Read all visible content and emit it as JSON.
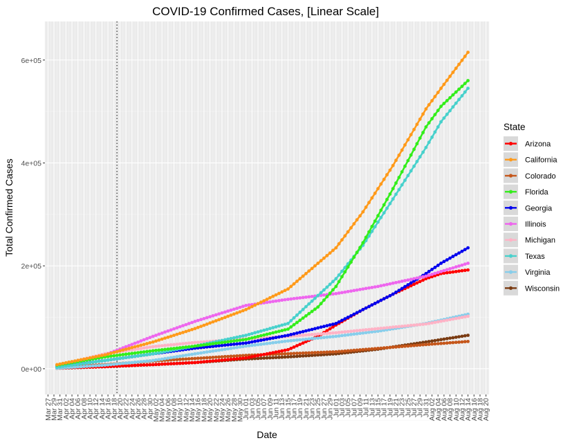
{
  "chart_data": {
    "type": "scatter",
    "title": "COVID-19 Confirmed Cases, [Linear Scale]",
    "xlabel": "Date",
    "ylabel": "Total Confirmed Cases",
    "xlim": [
      "2020-03-26",
      "2020-08-21"
    ],
    "ylim": [
      -50000,
      675000
    ],
    "x_ticks": [
      "Mar 27",
      "Mar 29",
      "Mar 31",
      "Apr 02",
      "Apr 04",
      "Apr 06",
      "Apr 08",
      "Apr 10",
      "Apr 12",
      "Apr 14",
      "Apr 16",
      "Apr 18",
      "Apr 20",
      "Apr 22",
      "Apr 24",
      "Apr 26",
      "Apr 28",
      "Apr 30",
      "May 02",
      "May 04",
      "May 06",
      "May 08",
      "May 10",
      "May 12",
      "May 14",
      "May 16",
      "May 18",
      "May 20",
      "May 22",
      "May 24",
      "May 26",
      "May 28",
      "May 30",
      "Jun 01",
      "Jun 03",
      "Jun 05",
      "Jun 07",
      "Jun 09",
      "Jun 11",
      "Jun 13",
      "Jun 15",
      "Jun 17",
      "Jun 19",
      "Jun 21",
      "Jun 23",
      "Jun 25",
      "Jun 27",
      "Jun 29",
      "Jul 01",
      "Jul 03",
      "Jul 05",
      "Jul 07",
      "Jul 09",
      "Jul 11",
      "Jul 13",
      "Jul 15",
      "Jul 17",
      "Jul 19",
      "Jul 21",
      "Jul 23",
      "Jul 25",
      "Jul 27",
      "Jul 29",
      "Jul 31",
      "Aug 02",
      "Aug 04",
      "Aug 06",
      "Aug 08",
      "Aug 10",
      "Aug 12",
      "Aug 14",
      "Aug 16",
      "Aug 18",
      "Aug 20"
    ],
    "y_ticks": [
      {
        "value": 0,
        "label": "0e+00"
      },
      {
        "value": 200000,
        "label": "2e+05"
      },
      {
        "value": 400000,
        "label": "4e+05"
      },
      {
        "value": 600000,
        "label": "6e+05"
      }
    ],
    "vline_date": "2020-04-19",
    "grid": true,
    "legend": {
      "title": "State",
      "position": "right",
      "items": [
        {
          "name": "Arizona",
          "color": "#ff0000"
        },
        {
          "name": "California",
          "color": "#ff9a1a"
        },
        {
          "name": "Colorado",
          "color": "#c5561a"
        },
        {
          "name": "Florida",
          "color": "#33ee1a"
        },
        {
          "name": "Georgia",
          "color": "#0000ee"
        },
        {
          "name": "Illinois",
          "color": "#ee66ee"
        },
        {
          "name": "Michigan",
          "color": "#ffb3c6"
        },
        {
          "name": "Texas",
          "color": "#48d1cc"
        },
        {
          "name": "Virginia",
          "color": "#87ceeb"
        },
        {
          "name": "Wisconsin",
          "color": "#7a3b12"
        }
      ]
    },
    "series": [
      {
        "name": "Arizona",
        "x": [
          "2020-03-30",
          "2020-04-15",
          "2020-05-01",
          "2020-05-15",
          "2020-06-01",
          "2020-06-15",
          "2020-06-25",
          "2020-07-01",
          "2020-07-10",
          "2020-07-20",
          "2020-07-31",
          "2020-08-05",
          "2020-08-14"
        ],
        "y": [
          1000,
          4000,
          8000,
          12000,
          21000,
          37000,
          63000,
          85000,
          115000,
          145000,
          175000,
          185000,
          192000
        ]
      },
      {
        "name": "California",
        "x": [
          "2020-03-30",
          "2020-04-15",
          "2020-05-01",
          "2020-05-15",
          "2020-06-01",
          "2020-06-15",
          "2020-07-01",
          "2020-07-10",
          "2020-07-20",
          "2020-07-31",
          "2020-08-05",
          "2020-08-14"
        ],
        "y": [
          8000,
          27000,
          52000,
          78000,
          115000,
          155000,
          235000,
          305000,
          395000,
          505000,
          545000,
          615000
        ]
      },
      {
        "name": "Colorado",
        "x": [
          "2020-03-30",
          "2020-04-15",
          "2020-05-01",
          "2020-06-01",
          "2020-07-01",
          "2020-07-31",
          "2020-08-14"
        ],
        "y": [
          3000,
          8000,
          15000,
          26000,
          33000,
          47000,
          53000
        ]
      },
      {
        "name": "Florida",
        "x": [
          "2020-03-30",
          "2020-04-15",
          "2020-05-01",
          "2020-05-15",
          "2020-06-01",
          "2020-06-15",
          "2020-06-25",
          "2020-07-01",
          "2020-07-10",
          "2020-07-20",
          "2020-07-31",
          "2020-08-05",
          "2020-08-14"
        ],
        "y": [
          7000,
          23000,
          35000,
          44000,
          57000,
          77000,
          120000,
          160000,
          245000,
          350000,
          470000,
          510000,
          560000
        ]
      },
      {
        "name": "Georgia",
        "x": [
          "2020-03-30",
          "2020-04-15",
          "2020-05-01",
          "2020-05-15",
          "2020-06-01",
          "2020-06-15",
          "2020-07-01",
          "2020-07-10",
          "2020-07-20",
          "2020-07-31",
          "2020-08-05",
          "2020-08-14"
        ],
        "y": [
          4000,
          16000,
          29000,
          40000,
          50000,
          65000,
          88000,
          115000,
          145000,
          185000,
          205000,
          235000
        ]
      },
      {
        "name": "Illinois",
        "x": [
          "2020-03-30",
          "2020-04-15",
          "2020-05-01",
          "2020-05-15",
          "2020-06-01",
          "2020-06-15",
          "2020-07-01",
          "2020-07-15",
          "2020-07-31",
          "2020-08-14"
        ],
        "y": [
          6000,
          27000,
          63000,
          92000,
          123000,
          135000,
          146000,
          160000,
          180000,
          205000
        ]
      },
      {
        "name": "Michigan",
        "x": [
          "2020-03-30",
          "2020-04-15",
          "2020-05-01",
          "2020-05-15",
          "2020-06-01",
          "2020-06-15",
          "2020-07-01",
          "2020-07-15",
          "2020-07-31",
          "2020-08-14"
        ],
        "y": [
          6000,
          29000,
          43000,
          51000,
          58000,
          63000,
          70000,
          78000,
          87000,
          102000
        ]
      },
      {
        "name": "Texas",
        "x": [
          "2020-03-30",
          "2020-04-15",
          "2020-05-01",
          "2020-05-15",
          "2020-06-01",
          "2020-06-15",
          "2020-07-01",
          "2020-07-10",
          "2020-07-20",
          "2020-07-31",
          "2020-08-05",
          "2020-08-14"
        ],
        "y": [
          3000,
          16000,
          29000,
          44000,
          65000,
          88000,
          175000,
          240000,
          330000,
          430000,
          480000,
          545000
        ]
      },
      {
        "name": "Virginia",
        "x": [
          "2020-03-30",
          "2020-04-15",
          "2020-05-01",
          "2020-05-15",
          "2020-06-01",
          "2020-06-15",
          "2020-07-01",
          "2020-07-15",
          "2020-07-31",
          "2020-08-14"
        ],
        "y": [
          1000,
          7000,
          16000,
          29000,
          44000,
          54000,
          63000,
          73000,
          88000,
          106000
        ]
      },
      {
        "name": "Wisconsin",
        "x": [
          "2020-03-30",
          "2020-04-15",
          "2020-05-01",
          "2020-05-15",
          "2020-06-01",
          "2020-06-15",
          "2020-07-01",
          "2020-07-15",
          "2020-07-31",
          "2020-08-14"
        ],
        "y": [
          1000,
          4000,
          8000,
          12000,
          19000,
          23000,
          29000,
          38000,
          52000,
          65000
        ]
      }
    ]
  }
}
